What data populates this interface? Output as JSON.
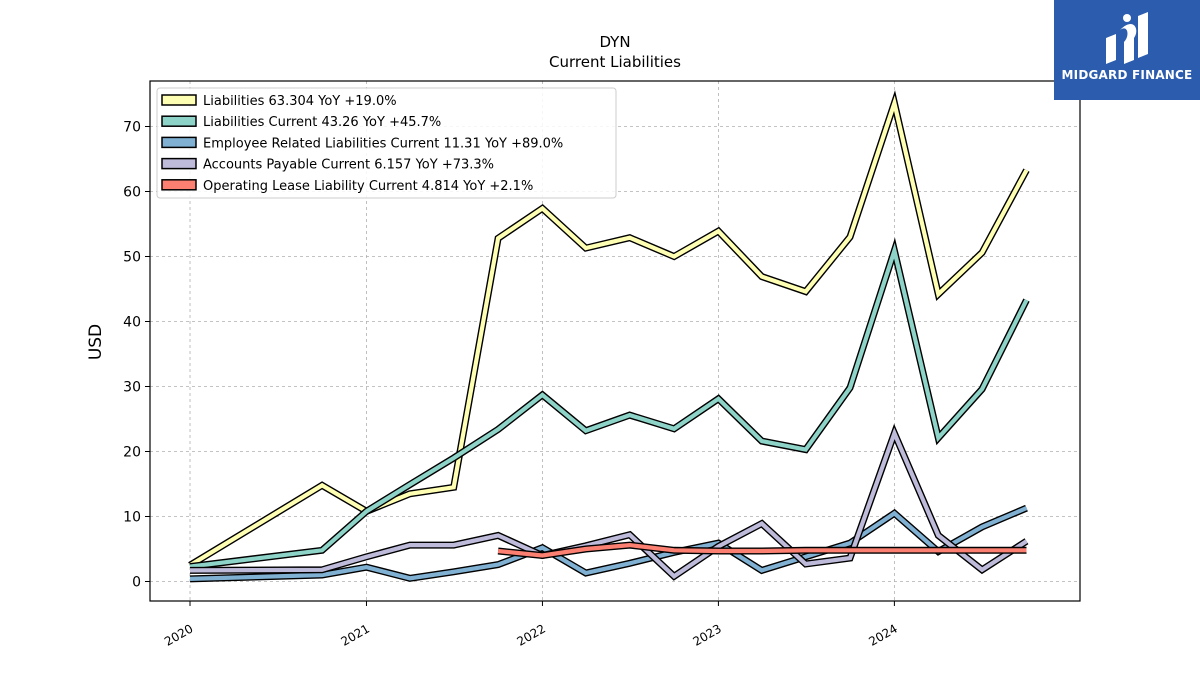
{
  "chart_data": {
    "type": "line",
    "title": "DYN",
    "subtitle": "Current  Liabilities",
    "ylabel": "USD",
    "xlabel": "",
    "xlim": [
      "2019-10-10",
      "2025-01-20"
    ],
    "ylim": [
      -3,
      77
    ],
    "yticks": [
      0,
      10,
      20,
      30,
      40,
      50,
      60,
      70
    ],
    "xticks": [
      {
        "label": "2020",
        "date": "2020-01-01"
      },
      {
        "label": "2021",
        "date": "2021-01-01"
      },
      {
        "label": "2022",
        "date": "2022-01-01"
      },
      {
        "label": "2023",
        "date": "2023-01-01"
      },
      {
        "label": "2024",
        "date": "2024-01-01"
      }
    ],
    "grid": true,
    "legend_position": "top-left",
    "series": [
      {
        "name": "Liabilities  63.304 YoY +19.0%",
        "color": "#ffffb3",
        "points": [
          [
            "2020-01-01",
            2.5
          ],
          [
            "2020-10-01",
            14.8
          ],
          [
            "2021-01-01",
            10.8
          ],
          [
            "2021-04-01",
            13.5
          ],
          [
            "2021-07-01",
            14.5
          ],
          [
            "2021-10-01",
            52.8
          ],
          [
            "2022-01-01",
            57.4
          ],
          [
            "2022-04-01",
            51.3
          ],
          [
            "2022-07-01",
            52.9
          ],
          [
            "2022-10-01",
            50.0
          ],
          [
            "2023-01-01",
            53.9
          ],
          [
            "2023-04-01",
            46.9
          ],
          [
            "2023-07-01",
            44.6
          ],
          [
            "2023-10-01",
            53.0
          ],
          [
            "2024-01-01",
            73.6
          ],
          [
            "2024-04-01",
            44.2
          ],
          [
            "2024-07-01",
            50.6
          ],
          [
            "2024-10-01",
            63.3
          ]
        ]
      },
      {
        "name": "Liabilities Current  43.26 YoY +45.7%",
        "color": "#8dd3c7",
        "points": [
          [
            "2020-01-01",
            2.3
          ],
          [
            "2020-10-01",
            4.8
          ],
          [
            "2021-01-01",
            10.8
          ],
          [
            "2021-04-01",
            14.9
          ],
          [
            "2021-07-01",
            19.0
          ],
          [
            "2021-10-01",
            23.4
          ],
          [
            "2022-01-01",
            28.7
          ],
          [
            "2022-04-01",
            23.2
          ],
          [
            "2022-07-01",
            25.6
          ],
          [
            "2022-10-01",
            23.5
          ],
          [
            "2023-01-01",
            28.1
          ],
          [
            "2023-04-01",
            21.6
          ],
          [
            "2023-07-01",
            20.3
          ],
          [
            "2023-10-01",
            29.8
          ],
          [
            "2024-01-01",
            50.9
          ],
          [
            "2024-04-01",
            22.1
          ],
          [
            "2024-07-01",
            29.6
          ],
          [
            "2024-10-01",
            43.3
          ]
        ]
      },
      {
        "name": "Employee Related Liabilities Current  11.31 YoY +89.0%",
        "color": "#80b1d3",
        "points": [
          [
            "2020-01-01",
            0.4
          ],
          [
            "2020-10-01",
            1.0
          ],
          [
            "2021-01-01",
            2.2
          ],
          [
            "2021-04-01",
            0.5
          ],
          [
            "2021-07-01",
            1.5
          ],
          [
            "2021-10-01",
            2.6
          ],
          [
            "2022-01-01",
            5.2
          ],
          [
            "2022-04-01",
            1.3
          ],
          [
            "2022-07-01",
            2.8
          ],
          [
            "2022-10-01",
            4.5
          ],
          [
            "2023-01-01",
            5.9
          ],
          [
            "2023-04-01",
            1.7
          ],
          [
            "2023-07-01",
            3.8
          ],
          [
            "2023-10-01",
            5.9
          ],
          [
            "2024-01-01",
            10.5
          ],
          [
            "2024-04-01",
            4.6
          ],
          [
            "2024-07-01",
            8.4
          ],
          [
            "2024-10-01",
            11.3
          ]
        ]
      },
      {
        "name": "Accounts Payable Current  6.157 YoY +73.3%",
        "color": "#bebada",
        "points": [
          [
            "2020-01-01",
            1.7
          ],
          [
            "2020-10-01",
            1.8
          ],
          [
            "2021-01-01",
            3.8
          ],
          [
            "2021-04-01",
            5.6
          ],
          [
            "2021-07-01",
            5.6
          ],
          [
            "2021-10-01",
            7.1
          ],
          [
            "2022-01-01",
            4.0
          ],
          [
            "2022-04-01",
            5.5
          ],
          [
            "2022-07-01",
            7.2
          ],
          [
            "2022-10-01",
            0.8
          ],
          [
            "2023-01-01",
            5.4
          ],
          [
            "2023-04-01",
            8.9
          ],
          [
            "2023-07-01",
            2.7
          ],
          [
            "2023-10-01",
            3.6
          ],
          [
            "2024-01-01",
            22.8
          ],
          [
            "2024-04-01",
            7.1
          ],
          [
            "2024-07-01",
            1.8
          ],
          [
            "2024-10-01",
            6.2
          ]
        ]
      },
      {
        "name": "Operating Lease Liability Current  4.814 YoY +2.1%",
        "color": "#fb8072",
        "points": [
          [
            "2021-10-01",
            4.7
          ],
          [
            "2022-01-01",
            4.0
          ],
          [
            "2022-04-01",
            5.0
          ],
          [
            "2022-07-01",
            5.6
          ],
          [
            "2022-10-01",
            4.8
          ],
          [
            "2023-01-01",
            4.7
          ],
          [
            "2023-04-01",
            4.7
          ],
          [
            "2023-07-01",
            4.8
          ],
          [
            "2023-10-01",
            4.8
          ],
          [
            "2024-01-01",
            4.8
          ],
          [
            "2024-04-01",
            4.8
          ],
          [
            "2024-07-01",
            4.8
          ],
          [
            "2024-10-01",
            4.8
          ]
        ]
      }
    ]
  },
  "logo": {
    "text": "MIDGARD FINANCE",
    "background": "#2b5cad"
  }
}
